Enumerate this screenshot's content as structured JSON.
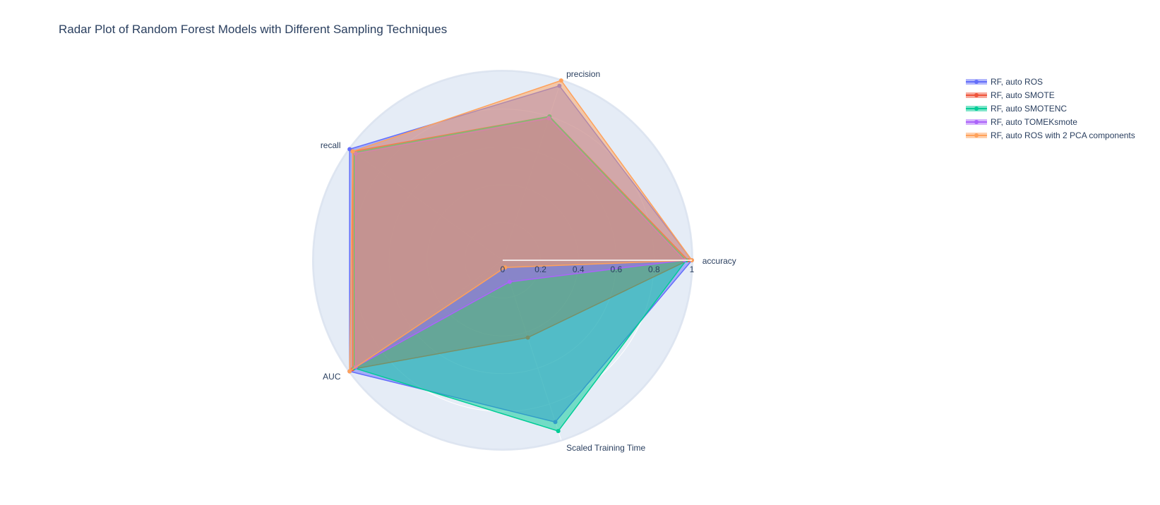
{
  "chart_data": {
    "type": "radar",
    "title": "Radar Plot of Random Forest Models with Different Sampling Techniques",
    "axes": [
      "accuracy",
      "precision",
      "recall",
      "AUC",
      "Scaled Training Time"
    ],
    "radial_range": [
      0,
      1
    ],
    "radial_ticks": [
      "0",
      "0.2",
      "0.4",
      "0.6",
      "0.8",
      "1"
    ],
    "radial_tick_values": [
      0,
      0.2,
      0.4,
      0.6,
      0.8,
      1
    ],
    "legend_position": "top-right",
    "background_color": "#e5ecf6",
    "series": [
      {
        "name": "RF, auto ROS",
        "color": "#636efa",
        "values": [
          1.0,
          0.97,
          1.0,
          1.0,
          0.9
        ]
      },
      {
        "name": "RF, auto SMOTE",
        "color": "#ef553b",
        "values": [
          0.98,
          0.8,
          0.98,
          0.98,
          0.43
        ]
      },
      {
        "name": "RF, auto SMOTENC",
        "color": "#00cc96",
        "values": [
          0.97,
          0.8,
          0.97,
          0.97,
          0.95
        ]
      },
      {
        "name": "RF, auto TOMEKsmote",
        "color": "#ab63fa",
        "values": [
          0.96,
          0.79,
          0.96,
          0.96,
          0.12
        ]
      },
      {
        "name": "RF, auto ROS with 2 PCA components",
        "color": "#ffa15a",
        "values": [
          1.0,
          1.0,
          0.98,
          1.0,
          0.04
        ]
      }
    ]
  }
}
